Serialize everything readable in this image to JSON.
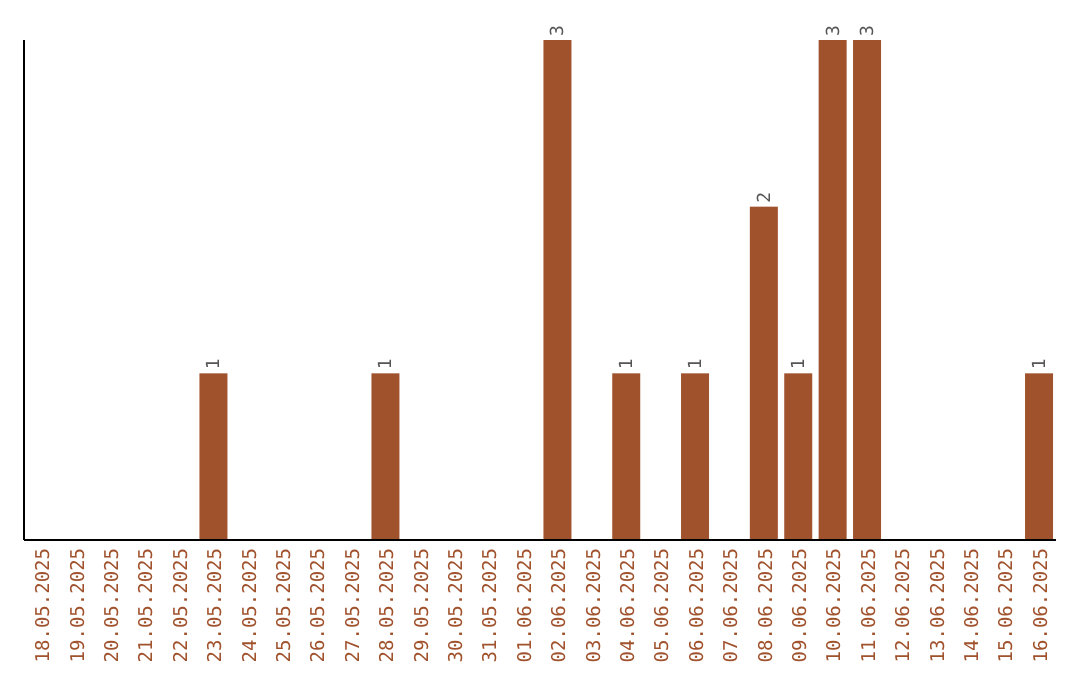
{
  "chart_data": {
    "type": "bar",
    "categories": [
      "18.05.2025",
      "19.05.2025",
      "20.05.2025",
      "21.05.2025",
      "22.05.2025",
      "23.05.2025",
      "24.05.2025",
      "25.05.2025",
      "26.05.2025",
      "27.05.2025",
      "28.05.2025",
      "29.05.2025",
      "30.05.2025",
      "31.05.2025",
      "01.06.2025",
      "02.06.2025",
      "03.06.2025",
      "04.06.2025",
      "05.06.2025",
      "06.06.2025",
      "07.06.2025",
      "08.06.2025",
      "09.06.2025",
      "10.06.2025",
      "11.06.2025",
      "12.06.2025",
      "13.06.2025",
      "14.06.2025",
      "15.06.2025",
      "16.06.2025"
    ],
    "values": [
      0,
      0,
      0,
      0,
      0,
      1,
      0,
      0,
      0,
      0,
      1,
      0,
      0,
      0,
      0,
      3,
      0,
      1,
      0,
      1,
      0,
      2,
      1,
      3,
      3,
      0,
      0,
      0,
      0,
      1
    ],
    "value_labels": [
      null,
      null,
      null,
      null,
      null,
      "1",
      null,
      null,
      null,
      null,
      "1",
      null,
      null,
      null,
      null,
      "3",
      null,
      "1",
      null,
      "1",
      null,
      "2",
      "1",
      "3",
      "3",
      null,
      null,
      null,
      null,
      "1"
    ],
    "color": "#a0522d"
  }
}
